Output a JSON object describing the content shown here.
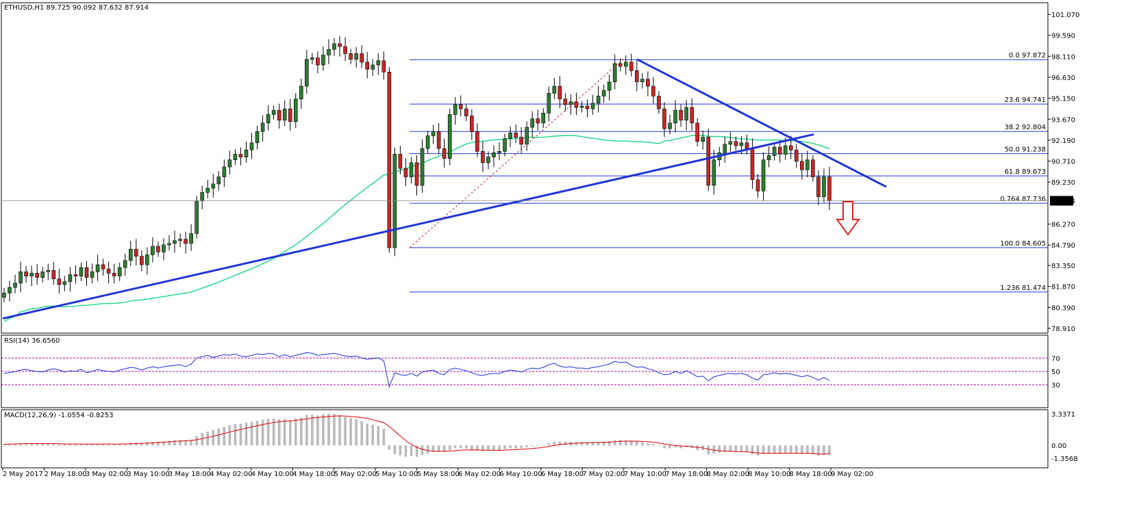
{
  "header": {
    "symbol_line": "ETHUSD,H1  89.725 90.092 87.632 87.914"
  },
  "colors": {
    "background": "#ffffff",
    "bull_candle": "#2e7d32",
    "bear_candle": "#c62828",
    "trendline": "#1f35d6",
    "fib": "#1f35d6",
    "ma": "#25d98a",
    "rsi_line": "#1a2ddb",
    "rsi_levels": "#c000c0",
    "macd_hist": "#b9b9b9",
    "macd_signal": "#e00000",
    "arrow": "#e02020"
  },
  "chart_data": [
    {
      "type": "line",
      "panel": "price",
      "title": "ETHUSD,H1",
      "ohlc_last": {
        "open": 89.725,
        "high": 90.092,
        "low": 87.632,
        "close": 87.914
      },
      "ylim": [
        78.91,
        101.07
      ],
      "y_ticks": [
        "101.070",
        "99.590",
        "98.110",
        "96.630",
        "95.150",
        "93.670",
        "92.190",
        "90.710",
        "89.230",
        "87.914",
        "86.270",
        "84.790",
        "83.350",
        "81.870",
        "80.390",
        "78.910"
      ],
      "x_ticks": [
        "2 May 2017",
        "2 May 18:00",
        "3 May 02:00",
        "3 May 10:00",
        "3 May 18:00",
        "4 May 02:00",
        "4 May 10:00",
        "4 May 18:00",
        "5 May 02:00",
        "5 May 10:00",
        "5 May 18:00",
        "6 May 02:00",
        "6 May 10:00",
        "6 May 18:00",
        "7 May 02:00",
        "7 May 10:00",
        "7 May 18:00",
        "8 May 02:00",
        "8 May 10:00",
        "8 May 18:00",
        "9 May 02:00"
      ],
      "current_price": "87.914",
      "fib_levels": [
        {
          "ratio": "0.0",
          "price": "97.872"
        },
        {
          "ratio": "23.6",
          "price": "94.741"
        },
        {
          "ratio": "38.2",
          "price": "92.804"
        },
        {
          "ratio": "50.0",
          "price": "91.238"
        },
        {
          "ratio": "61.8",
          "price": "89.673"
        },
        {
          "ratio": "0.764",
          "price": "87.736"
        },
        {
          "ratio": "100.0",
          "price": "84.605"
        },
        {
          "ratio": "1.236",
          "price": "81.474"
        }
      ],
      "close_series": [
        81.4,
        81.8,
        82.1,
        82.9,
        82.6,
        82.8,
        82.5,
        82.9,
        83.0,
        82.4,
        82.0,
        82.2,
        82.7,
        82.6,
        83.2,
        82.5,
        82.9,
        83.4,
        83.1,
        82.8,
        82.6,
        83.2,
        83.7,
        84.5,
        84.0,
        83.4,
        84.1,
        84.7,
        84.3,
        84.8,
        84.9,
        85.1,
        85.2,
        84.9,
        85.6,
        87.9,
        88.5,
        88.8,
        89.1,
        89.6,
        90.3,
        90.8,
        91.2,
        91.0,
        91.5,
        92.0,
        92.8,
        93.4,
        94.0,
        94.3,
        93.6,
        94.4,
        93.5,
        95.1,
        96.0,
        97.9,
        98.0,
        97.5,
        98.2,
        98.6,
        99.0,
        98.8,
        98.3,
        97.9,
        98.3,
        97.7,
        97.2,
        97.5,
        97.8,
        97.0,
        84.6,
        91.2,
        90.2,
        89.6,
        90.6,
        89.0,
        91.6,
        92.5,
        92.8,
        91.6,
        90.9,
        94.0,
        94.7,
        94.4,
        93.9,
        92.8,
        91.4,
        90.6,
        91.0,
        91.3,
        91.4,
        92.3,
        92.7,
        92.4,
        91.9,
        93.1,
        93.7,
        93.4,
        94.1,
        95.5,
        96.0,
        95.1,
        94.7,
        94.9,
        94.5,
        94.6,
        94.4,
        94.8,
        95.3,
        95.7,
        96.3,
        97.6,
        97.4,
        97.7,
        97.1,
        96.3,
        96.5,
        96.0,
        95.3,
        94.4,
        93.0,
        93.4,
        94.3,
        93.6,
        94.5,
        93.4,
        92.1,
        92.4,
        89.0,
        90.8,
        91.3,
        91.9,
        92.1,
        91.8,
        92.0,
        91.6,
        89.4,
        88.6,
        90.8,
        91.1,
        91.7,
        91.2,
        91.8,
        91.5,
        90.7,
        90.1,
        90.8,
        89.6,
        88.2,
        89.6,
        87.914
      ],
      "rsi": {
        "label": "RSI(14) 36.6560",
        "ylim": [
          0,
          100
        ],
        "levels": [
          70,
          50,
          30
        ],
        "y_ticks": [
          "70",
          "50",
          "30"
        ],
        "values": [
          47,
          48,
          50,
          52,
          53,
          51,
          50,
          49,
          52,
          54,
          52,
          49,
          51,
          50,
          53,
          48,
          50,
          53,
          51,
          50,
          49,
          52,
          54,
          56,
          55,
          52,
          55,
          57,
          55,
          57,
          58,
          59,
          60,
          57,
          61,
          70,
          72,
          74,
          71,
          73,
          75,
          74,
          76,
          73,
          72,
          74,
          76,
          75,
          77,
          76,
          72,
          75,
          72,
          74,
          76,
          78,
          77,
          74,
          75,
          76,
          77,
          75,
          73,
          72,
          73,
          70,
          68,
          69,
          70,
          66,
          27,
          48,
          45,
          44,
          47,
          43,
          49,
          51,
          52,
          47,
          45,
          53,
          55,
          53,
          51,
          48,
          45,
          44,
          46,
          47,
          47,
          50,
          52,
          51,
          49,
          53,
          55,
          54,
          56,
          60,
          62,
          58,
          56,
          57,
          55,
          55,
          54,
          56,
          57,
          59,
          61,
          65,
          63,
          64,
          59,
          56,
          57,
          54,
          52,
          48,
          45,
          46,
          50,
          47,
          51,
          47,
          42,
          43,
          36,
          42,
          44,
          46,
          47,
          46,
          47,
          45,
          40,
          37,
          45,
          46,
          48,
          46,
          47,
          46,
          44,
          42,
          44,
          41,
          37,
          41,
          36.656
        ]
      },
      "macd": {
        "label": "MACD(12,26,9) -1.0554 -0.8253",
        "ylim": [
          -1.3568,
          3.3371
        ],
        "y_ticks": [
          "3.3371",
          "0.00",
          "-1.3568"
        ],
        "hist": [
          0.15,
          0.18,
          0.2,
          0.24,
          0.22,
          0.2,
          0.18,
          0.2,
          0.22,
          0.18,
          0.14,
          0.12,
          0.14,
          0.13,
          0.16,
          0.12,
          0.13,
          0.16,
          0.15,
          0.13,
          0.12,
          0.15,
          0.2,
          0.28,
          0.3,
          0.28,
          0.32,
          0.38,
          0.4,
          0.45,
          0.5,
          0.55,
          0.58,
          0.55,
          0.6,
          1.0,
          1.3,
          1.45,
          1.6,
          1.78,
          1.95,
          2.1,
          2.25,
          2.3,
          2.4,
          2.5,
          2.6,
          2.7,
          2.8,
          2.85,
          2.75,
          2.8,
          2.7,
          2.85,
          2.95,
          3.2,
          3.25,
          3.15,
          3.3,
          3.35,
          3.3,
          3.2,
          3.0,
          2.9,
          2.8,
          2.55,
          2.3,
          2.2,
          2.05,
          1.75,
          -0.45,
          -0.9,
          -1.05,
          -1.2,
          -1.1,
          -1.2,
          -1.0,
          -0.85,
          -0.7,
          -0.7,
          -0.7,
          -0.45,
          -0.3,
          -0.3,
          -0.35,
          -0.45,
          -0.55,
          -0.6,
          -0.55,
          -0.55,
          -0.5,
          -0.4,
          -0.3,
          -0.3,
          -0.3,
          -0.2,
          -0.1,
          -0.05,
          0.05,
          0.25,
          0.4,
          0.4,
          0.4,
          0.4,
          0.35,
          0.35,
          0.3,
          0.3,
          0.35,
          0.4,
          0.45,
          0.55,
          0.6,
          0.55,
          0.5,
          0.4,
          0.35,
          0.25,
          0.15,
          -0.05,
          -0.3,
          -0.3,
          -0.2,
          -0.3,
          -0.2,
          -0.3,
          -0.5,
          -0.5,
          -0.95,
          -0.85,
          -0.75,
          -0.7,
          -0.65,
          -0.7,
          -0.65,
          -0.7,
          -0.95,
          -1.05,
          -0.9,
          -0.85,
          -0.8,
          -0.85,
          -0.8,
          -0.8,
          -0.85,
          -0.9,
          -0.85,
          -0.95,
          -1.1,
          -1.0,
          -1.0554
        ],
        "signal": [
          0.12,
          0.14,
          0.16,
          0.18,
          0.2,
          0.2,
          0.2,
          0.2,
          0.2,
          0.2,
          0.18,
          0.16,
          0.15,
          0.15,
          0.15,
          0.14,
          0.14,
          0.14,
          0.15,
          0.15,
          0.14,
          0.15,
          0.16,
          0.18,
          0.2,
          0.22,
          0.24,
          0.27,
          0.3,
          0.34,
          0.38,
          0.42,
          0.46,
          0.49,
          0.52,
          0.6,
          0.72,
          0.85,
          0.98,
          1.12,
          1.26,
          1.41,
          1.56,
          1.69,
          1.82,
          1.95,
          2.08,
          2.2,
          2.32,
          2.43,
          2.5,
          2.56,
          2.59,
          2.65,
          2.72,
          2.8,
          2.9,
          2.95,
          3.0,
          3.05,
          3.1,
          3.12,
          3.1,
          3.06,
          3.0,
          2.95,
          2.85,
          2.7,
          2.55,
          2.4,
          2.0,
          1.5,
          1.0,
          0.5,
          0.1,
          -0.2,
          -0.4,
          -0.55,
          -0.6,
          -0.62,
          -0.62,
          -0.58,
          -0.54,
          -0.5,
          -0.48,
          -0.47,
          -0.48,
          -0.5,
          -0.51,
          -0.52,
          -0.52,
          -0.5,
          -0.46,
          -0.43,
          -0.41,
          -0.37,
          -0.32,
          -0.27,
          -0.2,
          -0.1,
          0.0,
          0.08,
          0.15,
          0.2,
          0.24,
          0.27,
          0.29,
          0.3,
          0.31,
          0.33,
          0.35,
          0.39,
          0.43,
          0.45,
          0.46,
          0.45,
          0.43,
          0.39,
          0.34,
          0.26,
          0.15,
          0.06,
          0.0,
          -0.06,
          -0.09,
          -0.13,
          -0.2,
          -0.26,
          -0.4,
          -0.5,
          -0.56,
          -0.6,
          -0.62,
          -0.65,
          -0.66,
          -0.67,
          -0.73,
          -0.8,
          -0.82,
          -0.83,
          -0.82,
          -0.82,
          -0.82,
          -0.82,
          -0.82,
          -0.83,
          -0.83,
          -0.85,
          -0.9,
          -0.92,
          -0.8253
        ]
      }
    }
  ]
}
